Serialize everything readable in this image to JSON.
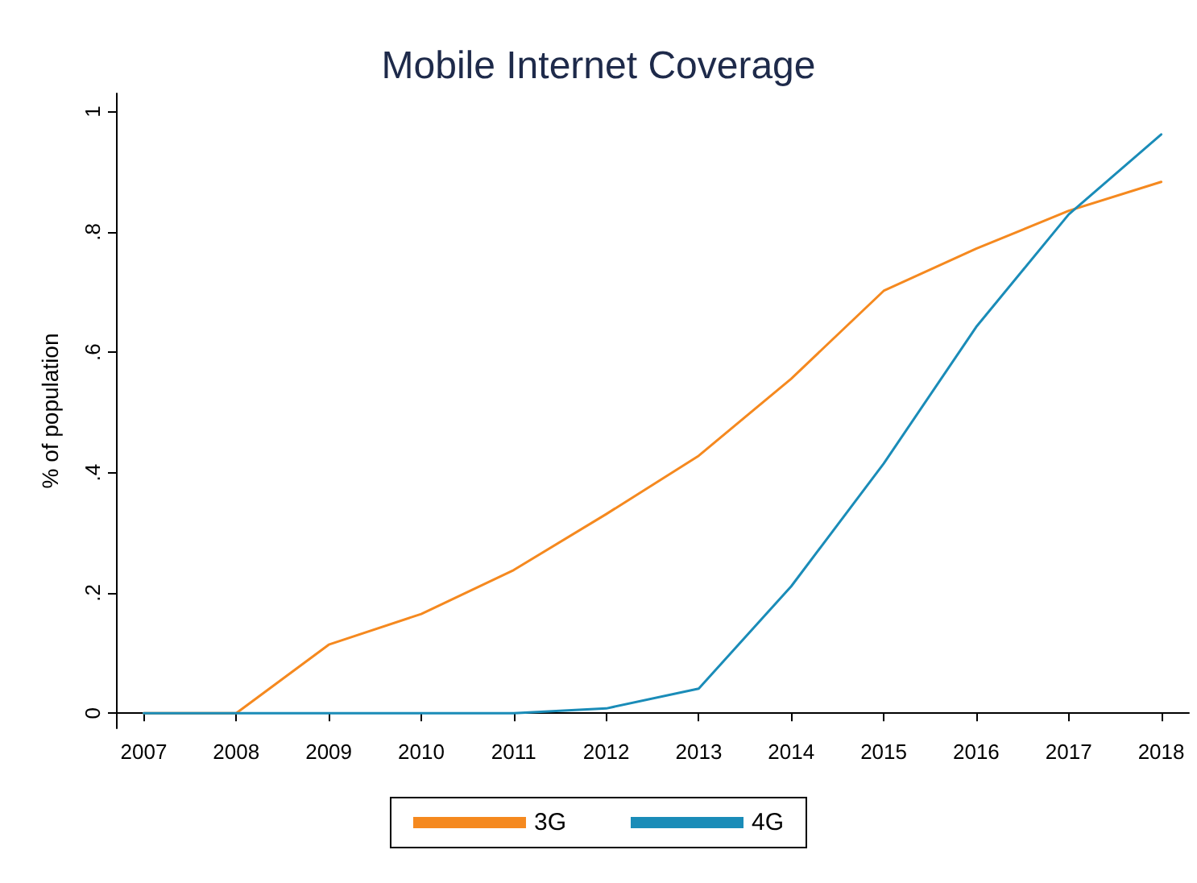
{
  "chart_data": {
    "type": "line",
    "title": "Mobile Internet Coverage",
    "ylabel": "% of population",
    "x": [
      2007,
      2008,
      2009,
      2010,
      2011,
      2012,
      2013,
      2014,
      2015,
      2016,
      2017,
      2018
    ],
    "series": [
      {
        "name": "3G",
        "color": "#f5891f",
        "values": [
          0,
          0,
          0.114,
          0.165,
          0.238,
          0.331,
          0.428,
          0.556,
          0.702,
          0.772,
          0.835,
          0.883
        ]
      },
      {
        "name": "4G",
        "color": "#1a8cb8",
        "values": [
          0,
          0,
          0,
          0,
          0,
          0.008,
          0.041,
          0.211,
          0.415,
          0.642,
          0.829,
          0.962
        ]
      }
    ],
    "xlim": [
      2006.7,
      2018.3
    ],
    "xticks": [
      2007,
      2008,
      2009,
      2010,
      2011,
      2012,
      2013,
      2014,
      2015,
      2016,
      2017,
      2018
    ],
    "ylim": [
      -0.025,
      1.03
    ],
    "yticks": [
      {
        "value": 0,
        "label": "0"
      },
      {
        "value": 0.2,
        "label": ".2"
      },
      {
        "value": 0.4,
        "label": ".4"
      },
      {
        "value": 0.6,
        "label": ".6"
      },
      {
        "value": 0.8,
        "label": ".8"
      },
      {
        "value": 1,
        "label": "1"
      }
    ],
    "grid": false,
    "legend": "bottom",
    "marker": "none",
    "line_style": "solid"
  }
}
